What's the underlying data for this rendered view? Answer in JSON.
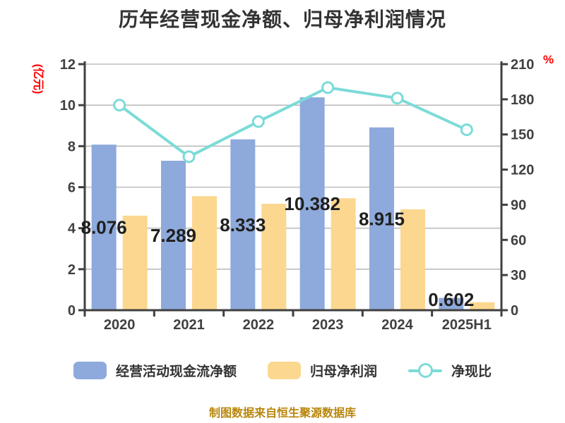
{
  "colors": {
    "bg": "#FFFFFF",
    "title": "#333333",
    "axis": "#404040",
    "tick": "#404040",
    "grid": "#BDBDBD",
    "label": "#1F1F1F",
    "red": "#FF0000",
    "footer": "#B8860B",
    "blue": "#8EA9DB",
    "yellow": "#FBD78F",
    "teal": "#7CDBD8"
  },
  "source_note": "制图数据来自恒生聚源数据库",
  "chart_data": {
    "type": "bar",
    "title": "历年经营现金净额、归母净利润情况",
    "categories": [
      "2020",
      "2021",
      "2022",
      "2023",
      "2024",
      "2025H1"
    ],
    "series": [
      {
        "name": "经营活动现金流净额",
        "type": "bar",
        "yaxis": "left",
        "color": "#8EA9DB",
        "values": [
          8.076,
          7.289,
          8.333,
          10.382,
          8.915,
          0.602
        ],
        "labels": [
          "8.076",
          "7.289",
          "8.333",
          "10.382",
          "8.915",
          "0.602"
        ]
      },
      {
        "name": "归母净利润",
        "type": "bar",
        "yaxis": "left",
        "color": "#FBD78F",
        "values": [
          4.61,
          5.56,
          5.19,
          5.46,
          4.92,
          0.39
        ]
      },
      {
        "name": "净现比",
        "type": "line",
        "yaxis": "right",
        "color": "#7CDBD8",
        "marker_fill": "#FFFFFF",
        "values": [
          175,
          131,
          161,
          190,
          181,
          154
        ]
      }
    ],
    "left_axis": {
      "label": "(亿元)",
      "min": 0,
      "max": 12,
      "step": 2
    },
    "right_axis": {
      "label": "%",
      "min": 0,
      "max": 210,
      "step": 30
    },
    "grid": "horizontal",
    "legend_position": "bottom"
  }
}
